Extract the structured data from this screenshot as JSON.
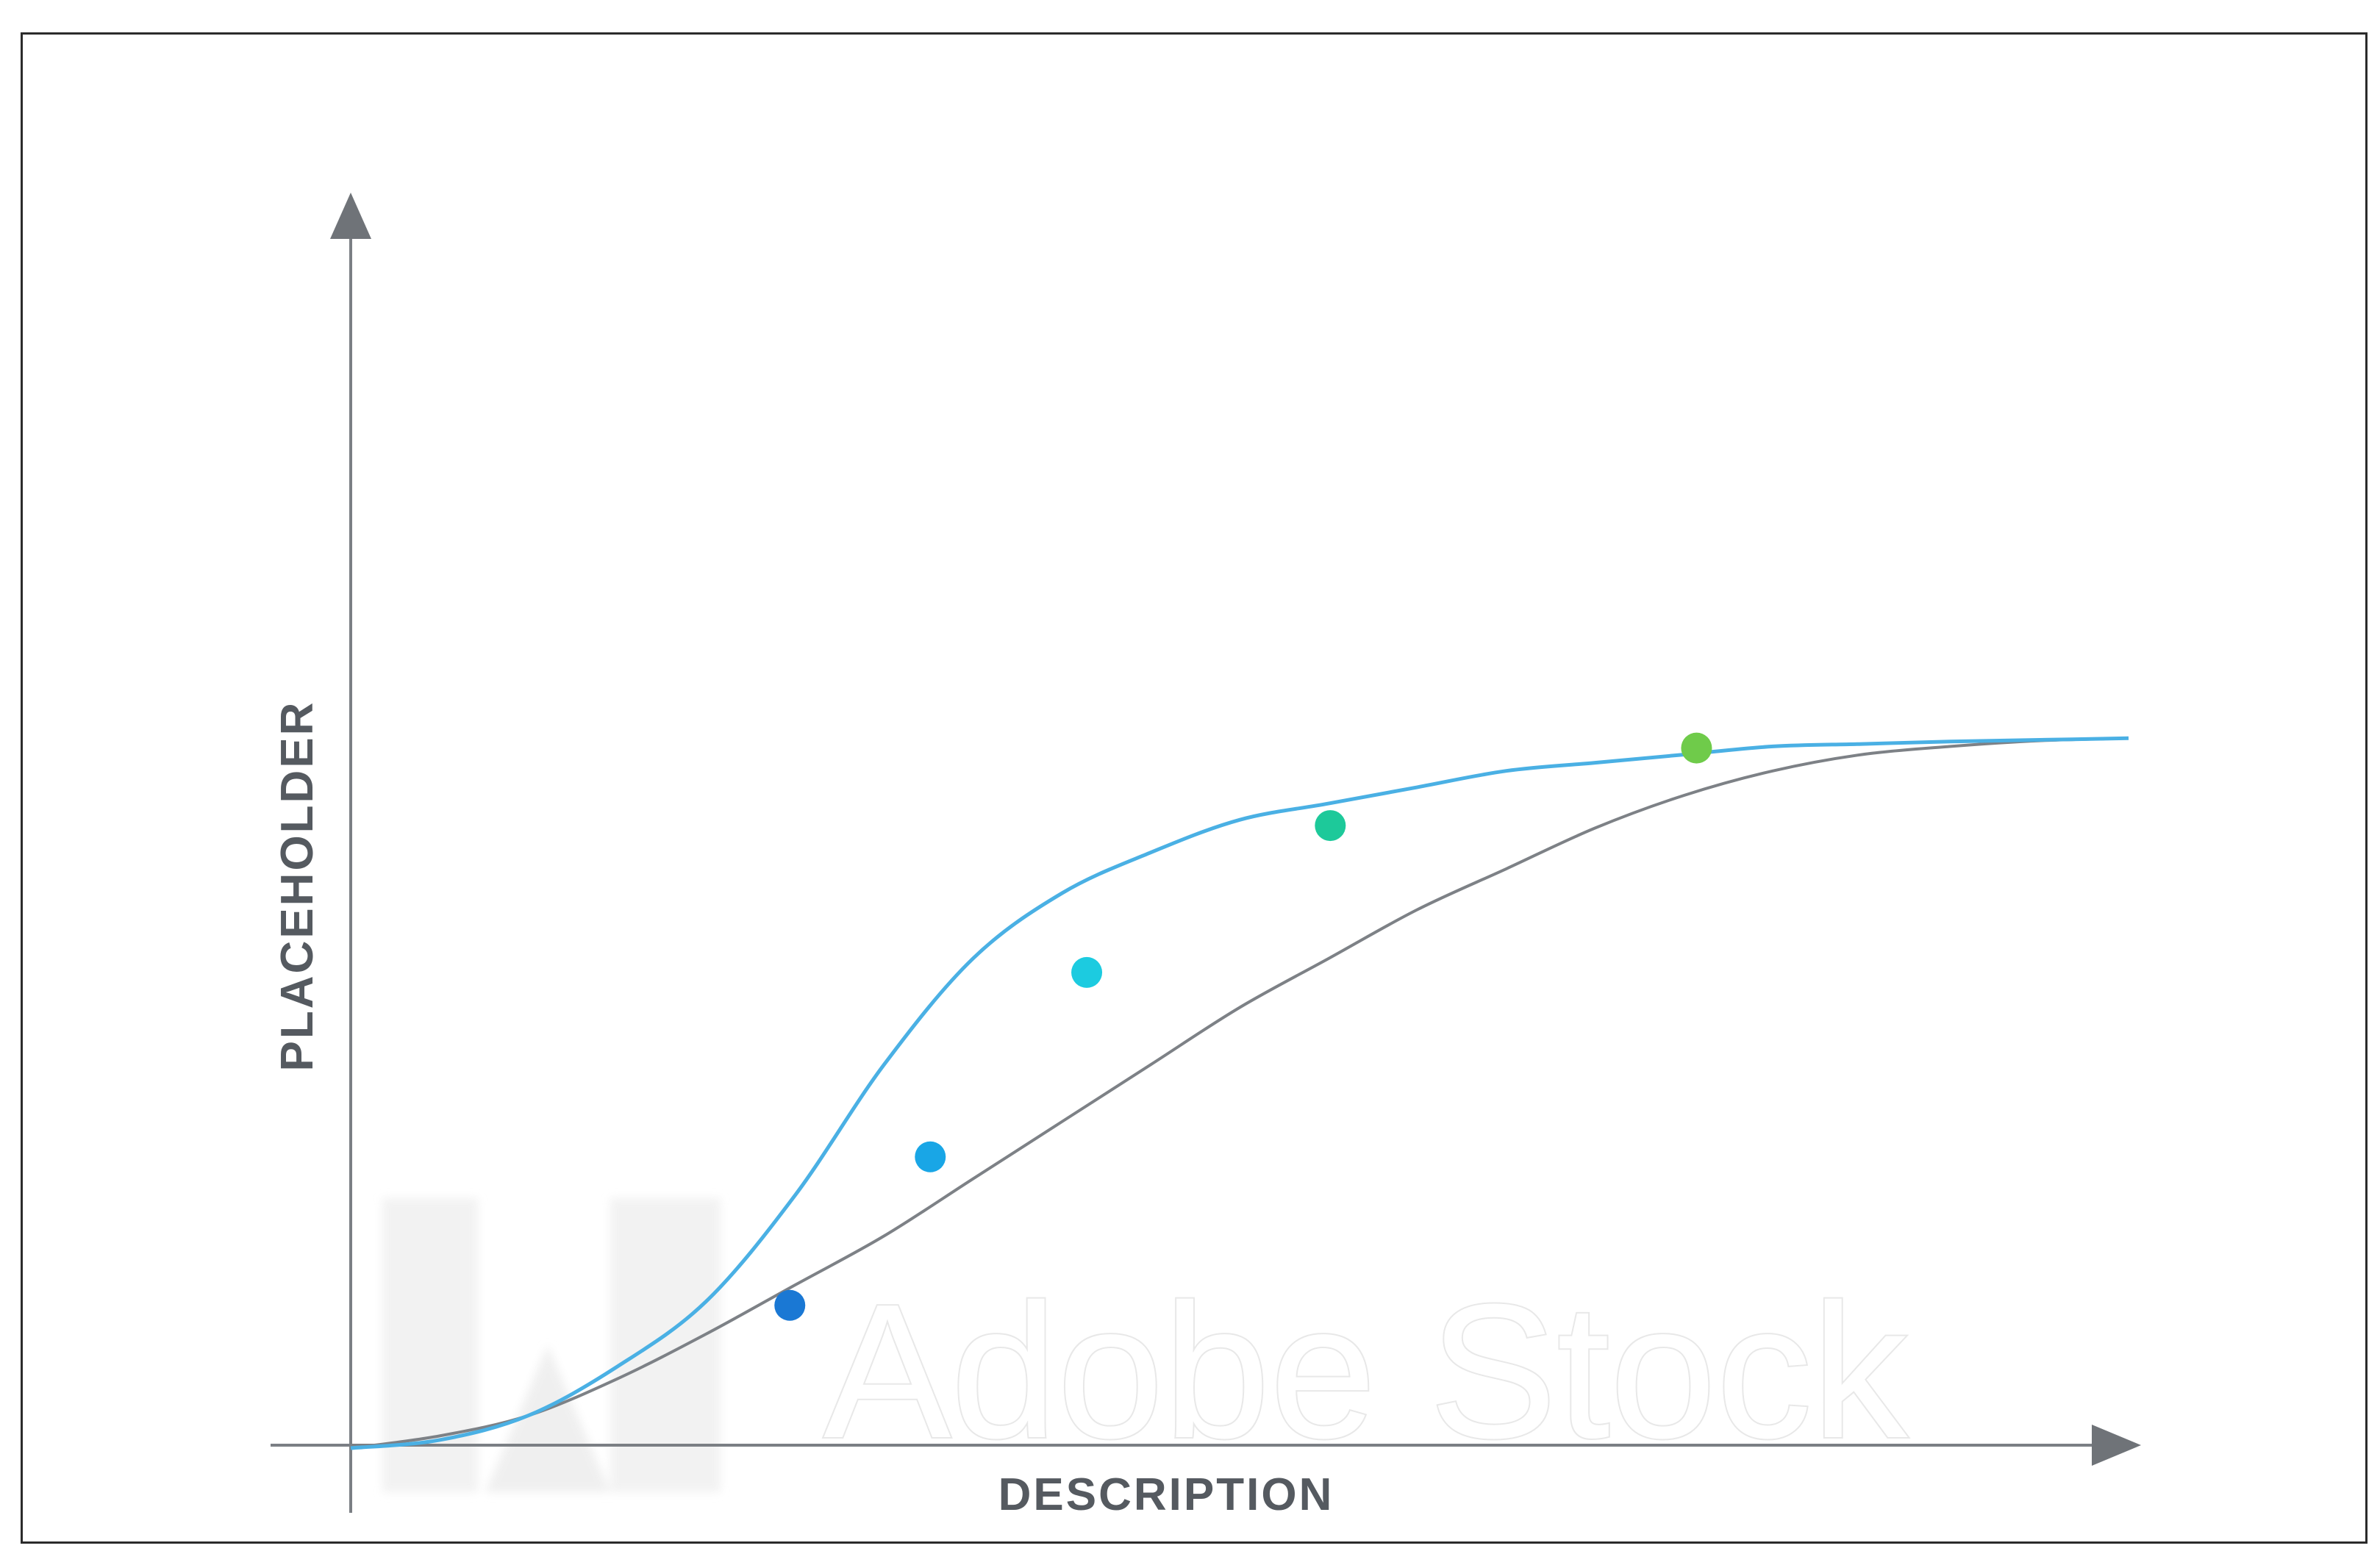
{
  "chart_data": {
    "type": "line",
    "title": "",
    "xlabel": "DESCRIPTION",
    "ylabel": "PLACEHOLDER",
    "xlim": [
      0,
      1
    ],
    "ylim": [
      0,
      1
    ],
    "grid": false,
    "series": [
      {
        "color": "#4ab0e4",
        "x": [
          0.0,
          0.05,
          0.1,
          0.15,
          0.2,
          0.25,
          0.3,
          0.35,
          0.4,
          0.45,
          0.5,
          0.55,
          0.6,
          0.65,
          0.7,
          0.75,
          0.8,
          0.85,
          0.9,
          0.95,
          1.0
        ],
        "y": [
          0.0,
          0.01,
          0.04,
          0.1,
          0.18,
          0.31,
          0.47,
          0.6,
          0.68,
          0.73,
          0.77,
          0.79,
          0.81,
          0.83,
          0.84,
          0.85,
          0.86,
          0.863,
          0.866,
          0.868,
          0.87
        ]
      },
      {
        "color": "#7d8186",
        "x": [
          0.0,
          0.05,
          0.1,
          0.15,
          0.2,
          0.25,
          0.3,
          0.35,
          0.4,
          0.45,
          0.5,
          0.55,
          0.6,
          0.65,
          0.7,
          0.75,
          0.8,
          0.85,
          0.9,
          0.95,
          1.0
        ],
        "y": [
          0.0,
          0.015,
          0.04,
          0.085,
          0.14,
          0.2,
          0.26,
          0.33,
          0.4,
          0.47,
          0.54,
          0.6,
          0.66,
          0.71,
          0.76,
          0.8,
          0.83,
          0.85,
          0.86,
          0.867,
          0.87
        ]
      }
    ],
    "markers": [
      {
        "x": 0.247,
        "y": 0.175,
        "color": "#1a78d4"
      },
      {
        "x": 0.326,
        "y": 0.357,
        "color": "#19a6e6"
      },
      {
        "x": 0.414,
        "y": 0.583,
        "color": "#1ccbe0"
      },
      {
        "x": 0.551,
        "y": 0.763,
        "color": "#1dc99a"
      },
      {
        "x": 0.757,
        "y": 0.858,
        "color": "#6fcb4a"
      }
    ],
    "axis_color": "#7b7f84"
  },
  "watermark": {
    "text": "Adobe Stock"
  }
}
